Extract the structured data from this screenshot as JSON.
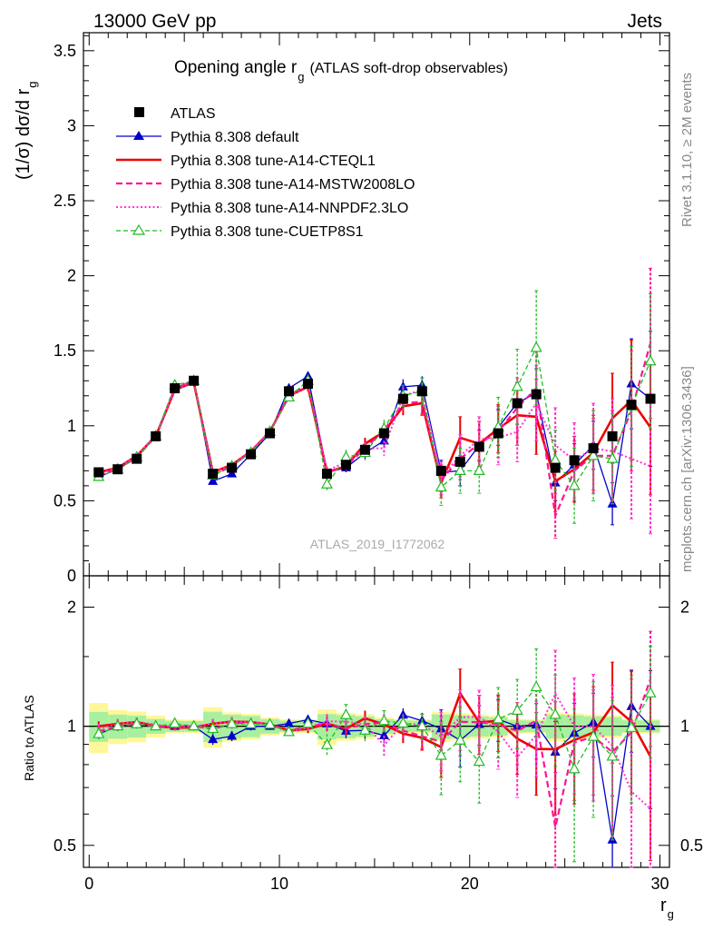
{
  "header": {
    "left": "13000 GeV pp",
    "right": "Jets"
  },
  "side_texts": {
    "rivet": "Rivet 3.1.10, ≥ 2M events",
    "mcplots": "mcplots.cern.ch [arXiv:1306.3436]"
  },
  "chart_data": {
    "type": "line",
    "title_main": "Opening angle r",
    "title_sub": "g",
    "title_suffix": "(ATLAS soft-drop observables)",
    "watermark": "ATLAS_2019_I1772062",
    "ylabel": "(1/σ) dσ/d r",
    "ylabel_sub": "g",
    "ratio_ylabel": "Ratio to ATLAS",
    "xlabel": "r",
    "xlabel_sub": "g",
    "xlim": [
      -0.3,
      30.5
    ],
    "ylim": [
      0,
      3.62
    ],
    "ratio_ylim": [
      0.44,
      2.4
    ],
    "log_ratio": true,
    "x_ticks": [
      "0",
      "10",
      "20",
      "30"
    ],
    "y_ticks": [
      "0",
      "0.5",
      "1",
      "1.5",
      "2",
      "2.5",
      "3",
      "3.5"
    ],
    "ratio_ticks": [
      "0.5",
      "1",
      "2"
    ],
    "x": [
      0.5,
      1.5,
      2.5,
      3.5,
      4.5,
      5.5,
      6.5,
      7.5,
      8.5,
      9.5,
      10.5,
      11.5,
      12.5,
      13.5,
      14.5,
      15.5,
      16.5,
      17.5,
      18.5,
      19.5,
      20.5,
      21.5,
      22.5,
      23.5,
      24.5,
      25.5,
      26.5,
      27.5,
      28.5,
      29.5
    ],
    "data": {
      "name": "ATLAS",
      "values": [
        0.69,
        0.71,
        0.78,
        0.93,
        1.25,
        1.3,
        0.68,
        0.72,
        0.81,
        0.95,
        1.23,
        1.28,
        0.68,
        0.74,
        0.84,
        0.95,
        1.18,
        1.23,
        0.7,
        0.76,
        0.86,
        0.95,
        1.15,
        1.21,
        0.72,
        0.77,
        0.85,
        0.93,
        1.14,
        1.18
      ],
      "band_inner": [
        0.06,
        0.05,
        0.05,
        0.04,
        0.04,
        0.04,
        0.06,
        0.05,
        0.05,
        0.04,
        0.04,
        0.04,
        0.05,
        0.05,
        0.05,
        0.04,
        0.04,
        0.04,
        0.05,
        0.05,
        0.05,
        0.05,
        0.04,
        0.04,
        0.05,
        0.05,
        0.05,
        0.05,
        0.04,
        0.04
      ],
      "band_outer": [
        0.1,
        0.07,
        0.07,
        0.06,
        0.05,
        0.05,
        0.08,
        0.06,
        0.06,
        0.05,
        0.05,
        0.05,
        0.07,
        0.06,
        0.06,
        0.05,
        0.05,
        0.05,
        0.06,
        0.06,
        0.06,
        0.06,
        0.05,
        0.05,
        0.06,
        0.06,
        0.06,
        0.06,
        0.05,
        0.05
      ]
    },
    "series": [
      {
        "name": "Pythia 8.308 default",
        "color": "#0000cc",
        "dash": "",
        "width": 1.3,
        "marker": "triangle",
        "values": [
          0.66,
          0.71,
          0.79,
          0.93,
          1.25,
          1.3,
          0.63,
          0.68,
          0.81,
          0.95,
          1.25,
          1.33,
          0.69,
          0.72,
          0.82,
          0.9,
          1.26,
          1.27,
          0.69,
          0.7,
          0.87,
          0.99,
          1.15,
          1.22,
          0.62,
          0.74,
          0.87,
          0.48,
          1.28,
          1.18
        ],
        "errors": [
          0.02,
          0.02,
          0.02,
          0.02,
          0.02,
          0.02,
          0.02,
          0.02,
          0.02,
          0.02,
          0.02,
          0.03,
          0.03,
          0.03,
          0.04,
          0.04,
          0.05,
          0.06,
          0.08,
          0.1,
          0.1,
          0.12,
          0.14,
          0.16,
          0.12,
          0.14,
          0.16,
          0.14,
          0.3,
          0.45
        ]
      },
      {
        "name": "Pythia 8.308 tune-A14-CTEQL1",
        "color": "#ee0000",
        "dash": "",
        "width": 2.6,
        "marker": "none",
        "values": [
          0.69,
          0.72,
          0.8,
          0.93,
          1.24,
          1.29,
          0.69,
          0.74,
          0.83,
          0.96,
          1.2,
          1.26,
          0.69,
          0.73,
          0.88,
          0.96,
          1.13,
          1.15,
          0.62,
          0.92,
          0.88,
          0.98,
          1.07,
          1.06,
          0.63,
          0.71,
          0.82,
          1.05,
          1.17,
          0.99
        ],
        "errors": [
          0.02,
          0.02,
          0.02,
          0.02,
          0.02,
          0.02,
          0.02,
          0.02,
          0.02,
          0.02,
          0.02,
          0.03,
          0.03,
          0.03,
          0.04,
          0.04,
          0.06,
          0.08,
          0.1,
          0.14,
          0.15,
          0.16,
          0.2,
          0.25,
          0.2,
          0.22,
          0.25,
          0.3,
          0.4,
          0.45
        ]
      },
      {
        "name": "Pythia 8.308 tune-A14-MSTW2008LO",
        "color": "#ff1493",
        "dash": "7,4",
        "width": 2.2,
        "marker": "none",
        "values": [
          0.67,
          0.71,
          0.79,
          0.93,
          1.25,
          1.3,
          0.67,
          0.73,
          0.83,
          0.96,
          1.2,
          1.28,
          0.69,
          0.73,
          0.85,
          0.97,
          1.15,
          1.16,
          0.64,
          0.78,
          0.88,
          0.96,
          1.12,
          1.25,
          0.4,
          0.7,
          0.8,
          0.8,
          1.1,
          1.55
        ],
        "errors": [
          0.02,
          0.02,
          0.02,
          0.02,
          0.02,
          0.02,
          0.02,
          0.02,
          0.02,
          0.02,
          0.02,
          0.03,
          0.03,
          0.03,
          0.04,
          0.05,
          0.06,
          0.08,
          0.1,
          0.14,
          0.15,
          0.17,
          0.2,
          0.25,
          0.15,
          0.2,
          0.25,
          0.3,
          0.4,
          0.5
        ]
      },
      {
        "name": "Pythia 8.308 tune-A14-NNPDF2.3LO",
        "color": "#ff33cc",
        "dash": "2,2.5",
        "width": 2.0,
        "marker": "none",
        "values": [
          0.68,
          0.72,
          0.8,
          0.94,
          1.24,
          1.3,
          0.69,
          0.74,
          0.83,
          0.96,
          1.19,
          1.27,
          0.7,
          0.76,
          0.85,
          0.85,
          1.2,
          1.24,
          0.66,
          0.8,
          0.91,
          0.92,
          0.96,
          1.15,
          0.87,
          0.77,
          0.85,
          0.83,
          0.78,
          0.73
        ],
        "errors": [
          0.02,
          0.02,
          0.02,
          0.02,
          0.02,
          0.02,
          0.02,
          0.02,
          0.02,
          0.02,
          0.02,
          0.03,
          0.03,
          0.03,
          0.04,
          0.05,
          0.06,
          0.08,
          0.1,
          0.14,
          0.15,
          0.18,
          0.2,
          0.25,
          0.25,
          0.25,
          0.3,
          0.35,
          0.4,
          0.45
        ]
      },
      {
        "name": "Pythia 8.308 tune-CUETP8S1",
        "color": "#22bb22",
        "dash": "5,3",
        "width": 1.3,
        "marker": "open-triangle",
        "values": [
          0.66,
          0.71,
          0.79,
          0.93,
          1.27,
          1.3,
          0.67,
          0.73,
          0.82,
          0.96,
          1.19,
          1.3,
          0.61,
          0.79,
          0.82,
          0.98,
          1.2,
          1.23,
          0.59,
          0.7,
          0.7,
          0.99,
          1.26,
          1.52,
          0.77,
          0.6,
          0.8,
          0.78,
          1.13,
          1.43
        ],
        "errors": [
          0.02,
          0.02,
          0.02,
          0.02,
          0.02,
          0.02,
          0.02,
          0.02,
          0.02,
          0.02,
          0.02,
          0.03,
          0.04,
          0.05,
          0.05,
          0.06,
          0.07,
          0.09,
          0.12,
          0.15,
          0.15,
          0.2,
          0.25,
          0.38,
          0.2,
          0.25,
          0.3,
          0.3,
          0.4,
          0.45
        ]
      }
    ]
  }
}
